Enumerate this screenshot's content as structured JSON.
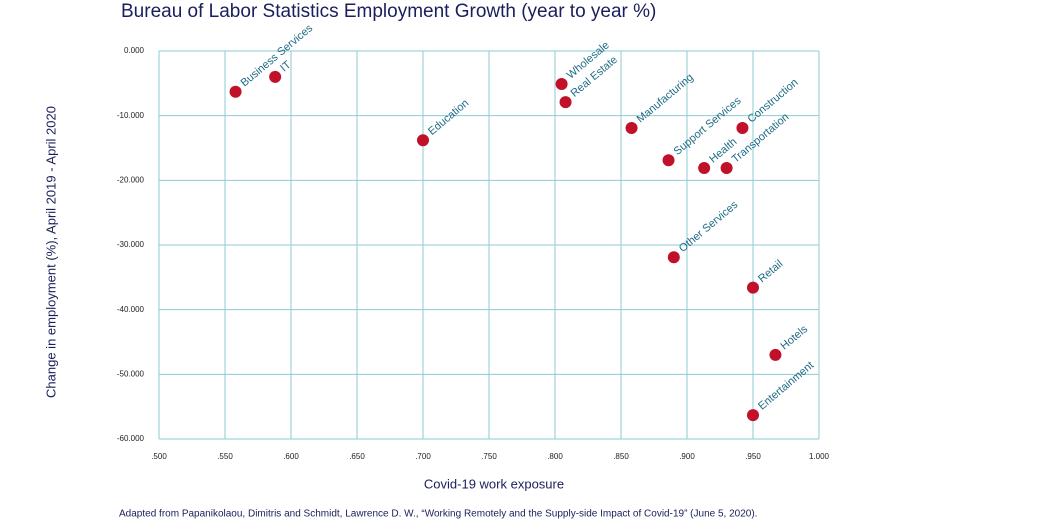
{
  "chart_data": {
    "type": "scatter",
    "title": "Bureau of Labor Statistics Employment Growth (year to year %)",
    "x_label": "Covid-19 work exposure",
    "y_label": "Change in employment (%), April 2019 - April 2020",
    "footnote": "Adapted from Papanikolaou, Dimitris and Schmidt, Lawrence D. W., “Working Remotely and the Supply-side Impact of Covid-19” (June 5, 2020).",
    "color": "#c0102a",
    "labels": [
      "Business Services",
      "IT",
      "Education",
      "Wholesale",
      "Real Estate",
      "Manufacturing",
      "Support Services",
      "Health",
      "Transportation",
      "Construction",
      "Other Services",
      "Retail",
      "Hotels",
      "Entertainment"
    ],
    "x": [
      0.558,
      0.588,
      0.7,
      0.805,
      0.808,
      0.858,
      0.886,
      0.913,
      0.93,
      0.942,
      0.89,
      0.95,
      0.967,
      0.95
    ],
    "values": [
      -6.3,
      -4.0,
      -13.8,
      -5.1,
      -7.9,
      -11.9,
      -16.9,
      -18.1,
      -18.1,
      -11.9,
      -31.9,
      -36.6,
      -47.0,
      -56.3
    ],
    "xlim": [
      0.5,
      1.0
    ],
    "ylim": [
      -60,
      0
    ],
    "xticks": [
      {
        "value": 0.5,
        "label": ".500"
      },
      {
        "value": 0.55,
        "label": ".550"
      },
      {
        "value": 0.6,
        "label": ".600"
      },
      {
        "value": 0.65,
        "label": ".650"
      },
      {
        "value": 0.7,
        "label": ".700"
      },
      {
        "value": 0.75,
        "label": ".750"
      },
      {
        "value": 0.8,
        "label": ".800"
      },
      {
        "value": 0.85,
        "label": ".850"
      },
      {
        "value": 0.9,
        "label": ".900"
      },
      {
        "value": 0.95,
        "label": ".950"
      },
      {
        "value": 1.0,
        "label": "1.000"
      }
    ],
    "yticks": [
      {
        "value": 0,
        "label": "0.000"
      },
      {
        "value": -10,
        "label": "-10.000"
      },
      {
        "value": -20,
        "label": "-20.000"
      },
      {
        "value": -30,
        "label": "-30.000"
      },
      {
        "value": -40,
        "label": "-40.000"
      },
      {
        "value": -50,
        "label": "-50.000"
      },
      {
        "value": -60,
        "label": "-60.000"
      }
    ],
    "grid": true
  }
}
